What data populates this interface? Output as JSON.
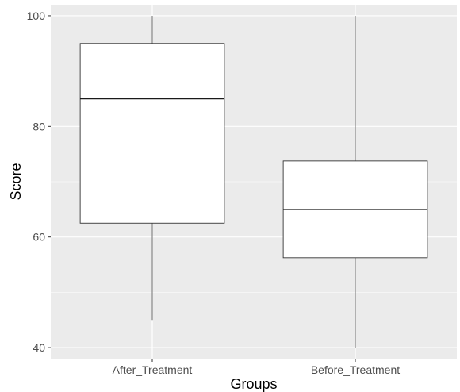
{
  "chart_data": {
    "type": "boxplot",
    "title": "",
    "xlabel": "Groups",
    "ylabel": "Score",
    "ylim": [
      38,
      102
    ],
    "yticks": [
      40,
      60,
      80,
      100
    ],
    "grid": true,
    "legend": "none",
    "categories": [
      "After_Treatment",
      "Before_Treatment"
    ],
    "boxes": [
      {
        "category": "After_Treatment",
        "min": 45,
        "q1": 62.5,
        "median": 85,
        "q3": 95,
        "max": 100
      },
      {
        "category": "Before_Treatment",
        "min": 40,
        "q1": 56.25,
        "median": 65,
        "q3": 73.75,
        "max": 100
      }
    ],
    "colors": {
      "panel": "#ebebeb",
      "grid_major": "#ffffff",
      "box_fill": "#ffffff",
      "box_stroke": "#333333"
    }
  }
}
